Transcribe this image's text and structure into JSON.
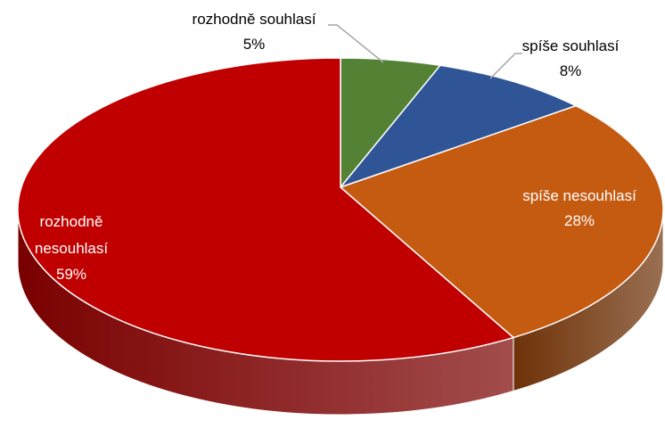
{
  "chart_data": {
    "type": "pie",
    "categories": [
      "rozhodně souhlasí",
      "spíše souhlasí",
      "spíše nesouhlasí",
      "rozhodně nesouhlasí"
    ],
    "values": [
      5,
      8,
      28,
      59
    ],
    "value_labels": [
      "5%",
      "8%",
      "28%",
      "59%"
    ],
    "colors": [
      "#548235",
      "#2f5597",
      "#c55a11",
      "#c00000"
    ],
    "side_colors": [
      "#385723",
      "#1f3864",
      "#6e3208",
      "#7a0000"
    ]
  }
}
